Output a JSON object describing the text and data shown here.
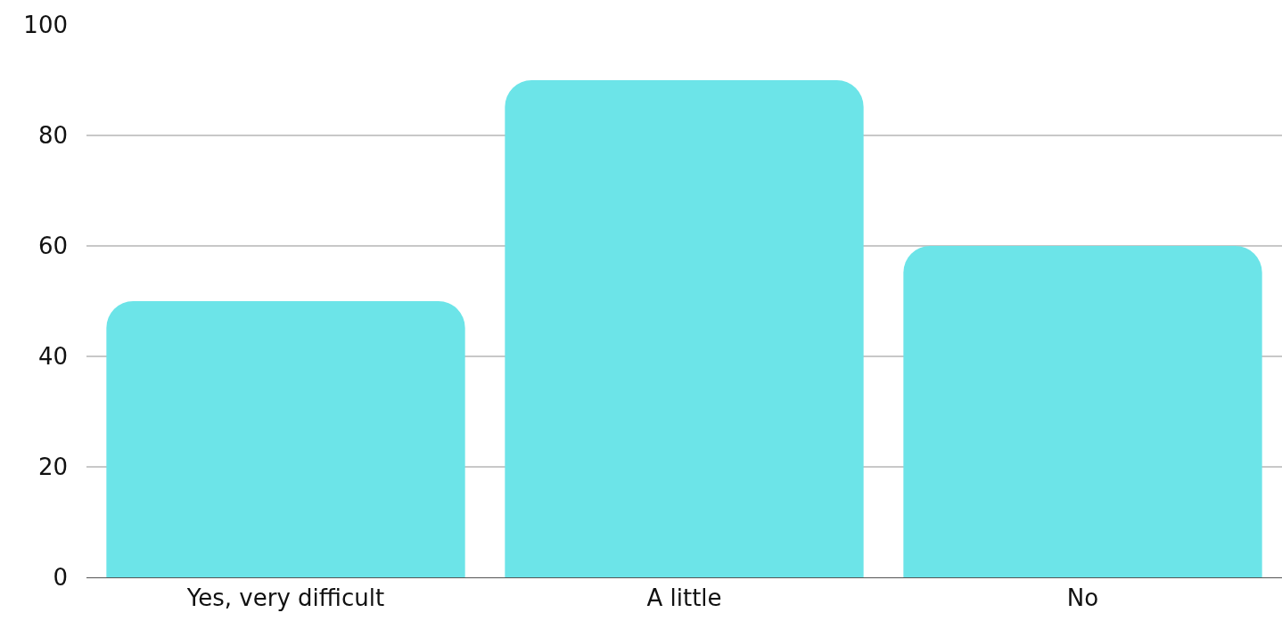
{
  "chart_data": {
    "type": "bar",
    "categories": [
      "Yes, very difficult",
      "A little",
      "No"
    ],
    "values": [
      50,
      90,
      60
    ],
    "color": "#6ce4e8",
    "ylim": [
      0,
      100
    ],
    "yticks": [
      0,
      20,
      40,
      60,
      80,
      100
    ],
    "grid": "y"
  }
}
